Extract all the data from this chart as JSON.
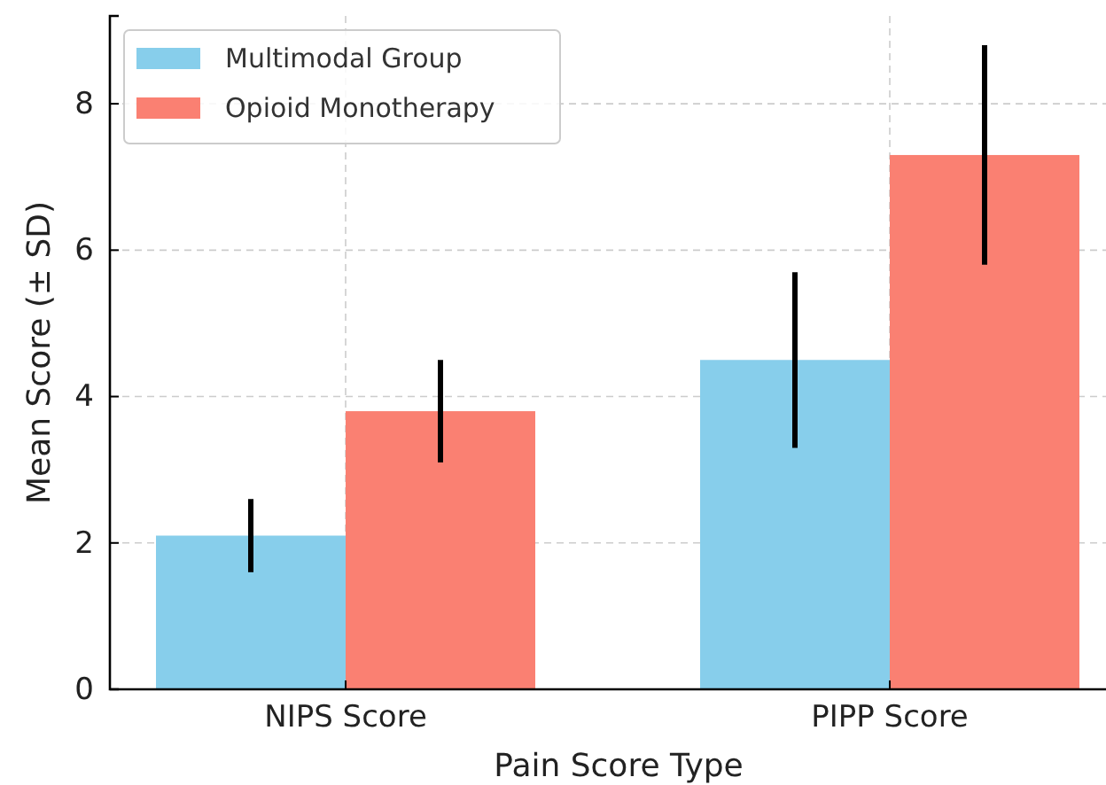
{
  "chart_data": {
    "type": "bar",
    "xlabel": "Pain Score Type",
    "ylabel": "Mean Score (± SD)",
    "categories": [
      "NIPS Score",
      "PIPP Score"
    ],
    "series": [
      {
        "name": "Multimodal Group",
        "color": "#87ceeb",
        "values": [
          2.1,
          4.5
        ],
        "errors": [
          0.5,
          1.2
        ]
      },
      {
        "name": "Opioid Monotherapy",
        "color": "#fa8072",
        "values": [
          3.8,
          7.3
        ],
        "errors": [
          0.7,
          1.5
        ]
      }
    ],
    "ylim": [
      0,
      9.2
    ],
    "yticks": [
      0,
      2,
      4,
      6,
      8
    ],
    "grid": true,
    "legend": "top left"
  }
}
